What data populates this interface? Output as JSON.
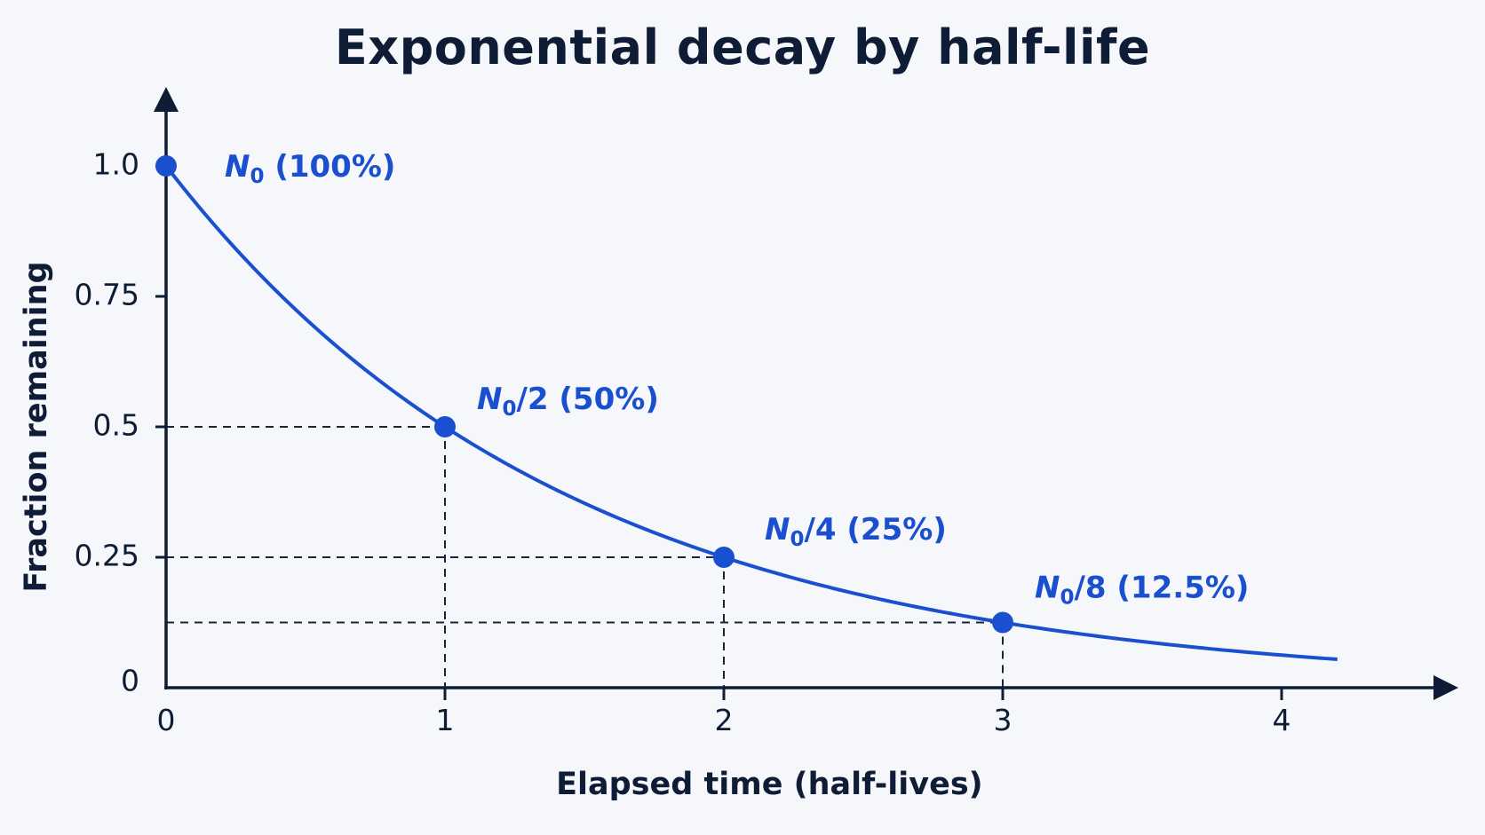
{
  "colors": {
    "series": "#1a4fd0",
    "axis": "#0f1c36",
    "guide": "#1b2438",
    "background": "#f5f7fa"
  },
  "chart_data": {
    "type": "line",
    "title": "Exponential decay by half-life",
    "xlabel": "Elapsed time (half-lives)",
    "ylabel": "Fraction remaining",
    "xlim": [
      0,
      4.2
    ],
    "ylim": [
      0,
      1.0
    ],
    "x_ticks": [
      {
        "value": 0,
        "label": "0"
      },
      {
        "value": 1,
        "label": "1"
      },
      {
        "value": 2,
        "label": "2"
      },
      {
        "value": 3,
        "label": "3"
      },
      {
        "value": 4,
        "label": "4"
      }
    ],
    "y_ticks": [
      {
        "value": 0,
        "label": "0"
      },
      {
        "value": 0.25,
        "label": "0.25"
      },
      {
        "value": 0.5,
        "label": "0.5"
      },
      {
        "value": 0.75,
        "label": "0.75"
      },
      {
        "value": 1.0,
        "label": "1.0"
      }
    ],
    "curve": {
      "function": "0.5^x",
      "x_start": 0,
      "x_end": 4.2
    },
    "points": [
      {
        "x": 0,
        "y": 1.0,
        "label_base": "N",
        "label_sub": "0",
        "label_suffix": " (100%)"
      },
      {
        "x": 1,
        "y": 0.5,
        "label_base": "N",
        "label_sub": "0",
        "label_suffix": "/2 (50%)"
      },
      {
        "x": 2,
        "y": 0.25,
        "label_base": "N",
        "label_sub": "0",
        "label_suffix": "/4 (25%)"
      },
      {
        "x": 3,
        "y": 0.125,
        "label_base": "N",
        "label_sub": "0",
        "label_suffix": "/8 (12.5%)"
      }
    ],
    "grid": false
  }
}
